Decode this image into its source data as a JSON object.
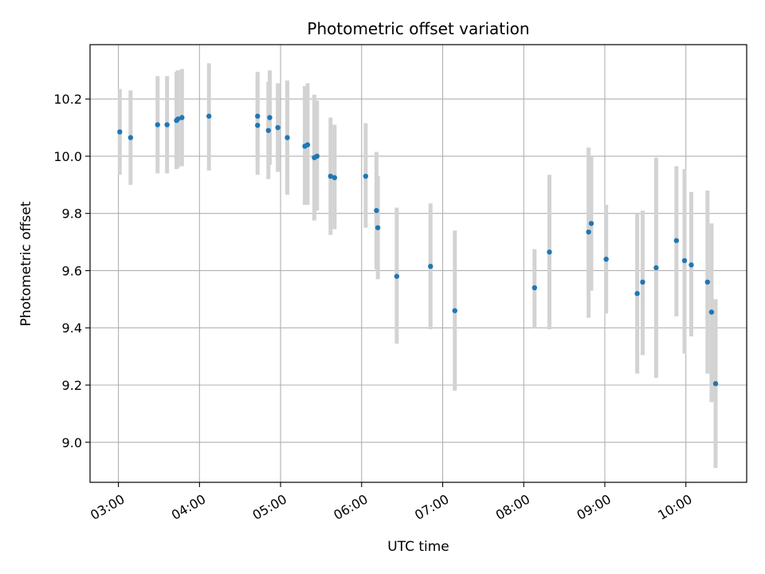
{
  "chart_data": {
    "type": "scatter",
    "title": "Photometric offset variation",
    "xlabel": "UTC time",
    "ylabel": "Photometric offset",
    "x_ticks": [
      "03:00",
      "04:00",
      "05:00",
      "06:00",
      "07:00",
      "08:00",
      "09:00",
      "10:00"
    ],
    "y_ticks": [
      "9.0",
      "9.2",
      "9.4",
      "9.6",
      "9.8",
      "10.0",
      "10.2"
    ],
    "xlim": [
      "02:39",
      "10:45"
    ],
    "ylim": [
      8.86,
      10.39
    ],
    "grid": true,
    "colors": {
      "point": "#1f77b4",
      "errorbar": "#d3d3d3",
      "grid": "#b0b0b0"
    },
    "series": [
      {
        "points": [
          {
            "t": "03:01",
            "y": 10.085,
            "lo": 9.935,
            "hi": 10.235
          },
          {
            "t": "03:09",
            "y": 10.065,
            "lo": 9.9,
            "hi": 10.23
          },
          {
            "t": "03:29",
            "y": 10.11,
            "lo": 9.94,
            "hi": 10.28
          },
          {
            "t": "03:36",
            "y": 10.11,
            "lo": 9.94,
            "hi": 10.28
          },
          {
            "t": "03:43",
            "y": 10.125,
            "lo": 9.955,
            "hi": 10.295
          },
          {
            "t": "03:44",
            "y": 10.13,
            "lo": 9.96,
            "hi": 10.3
          },
          {
            "t": "03:47",
            "y": 10.135,
            "lo": 9.965,
            "hi": 10.305
          },
          {
            "t": "04:07",
            "y": 10.14,
            "lo": 9.95,
            "hi": 10.325
          },
          {
            "t": "04:43",
            "y": 10.14,
            "lo": 9.985,
            "hi": 10.295
          },
          {
            "t": "04:43",
            "y": 10.108,
            "lo": 9.935,
            "hi": 10.28
          },
          {
            "t": "04:51",
            "y": 10.09,
            "lo": 9.92,
            "hi": 10.26
          },
          {
            "t": "04:52",
            "y": 10.135,
            "lo": 9.97,
            "hi": 10.3
          },
          {
            "t": "04:58",
            "y": 10.1,
            "lo": 9.945,
            "hi": 10.255
          },
          {
            "t": "05:05",
            "y": 10.065,
            "lo": 9.865,
            "hi": 10.265
          },
          {
            "t": "05:18",
            "y": 10.035,
            "lo": 9.83,
            "hi": 10.245
          },
          {
            "t": "05:20",
            "y": 10.04,
            "lo": 9.83,
            "hi": 10.255
          },
          {
            "t": "05:25",
            "y": 9.995,
            "lo": 9.775,
            "hi": 10.215
          },
          {
            "t": "05:27",
            "y": 10.0,
            "lo": 9.81,
            "hi": 10.195
          },
          {
            "t": "05:37",
            "y": 9.93,
            "lo": 9.725,
            "hi": 10.135
          },
          {
            "t": "05:40",
            "y": 9.925,
            "lo": 9.745,
            "hi": 10.11
          },
          {
            "t": "06:03",
            "y": 9.93,
            "lo": 9.75,
            "hi": 10.115
          },
          {
            "t": "06:11",
            "y": 9.81,
            "lo": 9.605,
            "hi": 10.015
          },
          {
            "t": "06:12",
            "y": 9.75,
            "lo": 9.57,
            "hi": 9.93
          },
          {
            "t": "06:26",
            "y": 9.58,
            "lo": 9.345,
            "hi": 9.82
          },
          {
            "t": "06:51",
            "y": 9.615,
            "lo": 9.395,
            "hi": 9.835
          },
          {
            "t": "07:09",
            "y": 9.46,
            "lo": 9.18,
            "hi": 9.74
          },
          {
            "t": "08:08",
            "y": 9.54,
            "lo": 9.4,
            "hi": 9.675
          },
          {
            "t": "08:19",
            "y": 9.665,
            "lo": 9.395,
            "hi": 9.935
          },
          {
            "t": "08:48",
            "y": 9.735,
            "lo": 9.435,
            "hi": 10.03
          },
          {
            "t": "08:50",
            "y": 9.765,
            "lo": 9.53,
            "hi": 10.0
          },
          {
            "t": "09:01",
            "y": 9.64,
            "lo": 9.45,
            "hi": 9.83
          },
          {
            "t": "09:24",
            "y": 9.52,
            "lo": 9.24,
            "hi": 9.8
          },
          {
            "t": "09:28",
            "y": 9.56,
            "lo": 9.305,
            "hi": 9.81
          },
          {
            "t": "09:38",
            "y": 9.61,
            "lo": 9.225,
            "hi": 9.995
          },
          {
            "t": "09:53",
            "y": 9.705,
            "lo": 9.44,
            "hi": 9.965
          },
          {
            "t": "09:59",
            "y": 9.635,
            "lo": 9.31,
            "hi": 9.955
          },
          {
            "t": "10:04",
            "y": 9.62,
            "lo": 9.37,
            "hi": 9.875
          },
          {
            "t": "10:16",
            "y": 9.56,
            "lo": 9.24,
            "hi": 9.88
          },
          {
            "t": "10:19",
            "y": 9.455,
            "lo": 9.14,
            "hi": 9.765
          },
          {
            "t": "10:22",
            "y": 9.205,
            "lo": 8.91,
            "hi": 9.5
          }
        ]
      }
    ]
  }
}
